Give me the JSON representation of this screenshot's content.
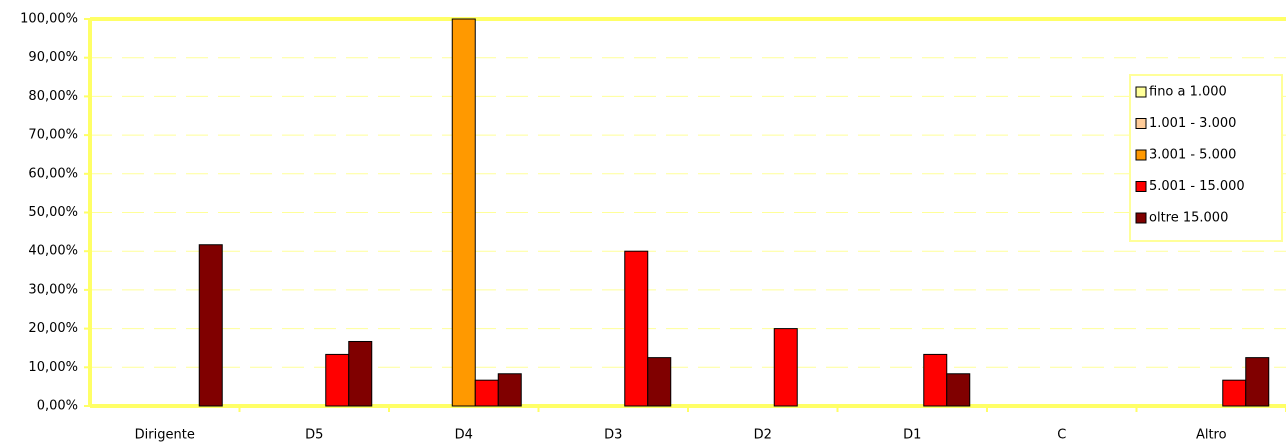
{
  "chart_data": {
    "type": "bar",
    "categories": [
      "Dirigente",
      "D5",
      "D4",
      "D3",
      "D2",
      "D1",
      "C",
      "Altro"
    ],
    "series": [
      {
        "name": "fino a 1.000",
        "color": "#ffff99",
        "values": [
          0,
          0,
          0,
          0,
          0,
          0,
          0,
          0
        ]
      },
      {
        "name": "1.001 - 3.000",
        "color": "#ffcc99",
        "values": [
          0,
          0,
          0,
          0,
          0,
          0,
          0,
          0
        ]
      },
      {
        "name": "3.001 - 5.000",
        "color": "#ff9900",
        "values": [
          0,
          0,
          100,
          0,
          0,
          0,
          0,
          0
        ]
      },
      {
        "name": "5.001 - 15.000",
        "color": "#ff0000",
        "values": [
          0,
          13.33,
          6.67,
          40,
          20,
          13.33,
          0,
          6.67
        ]
      },
      {
        "name": "oltre 15.000",
        "color": "#800000",
        "values": [
          41.67,
          16.67,
          8.33,
          12.5,
          0,
          8.33,
          0,
          12.5
        ]
      }
    ],
    "ylim": [
      0,
      100
    ],
    "yticks": [
      {
        "value": 0,
        "label": "0,00%"
      },
      {
        "value": 10,
        "label": "10,00%"
      },
      {
        "value": 20,
        "label": "20,00%"
      },
      {
        "value": 30,
        "label": "30,00%"
      },
      {
        "value": 40,
        "label": "40,00%"
      },
      {
        "value": 50,
        "label": "50,00%"
      },
      {
        "value": 60,
        "label": "60,00%"
      },
      {
        "value": 70,
        "label": "70,00%"
      },
      {
        "value": 80,
        "label": "80,00%"
      },
      {
        "value": 90,
        "label": "90,00%"
      },
      {
        "value": 100,
        "label": "100,00%"
      }
    ],
    "grid": true,
    "legend": "right"
  }
}
